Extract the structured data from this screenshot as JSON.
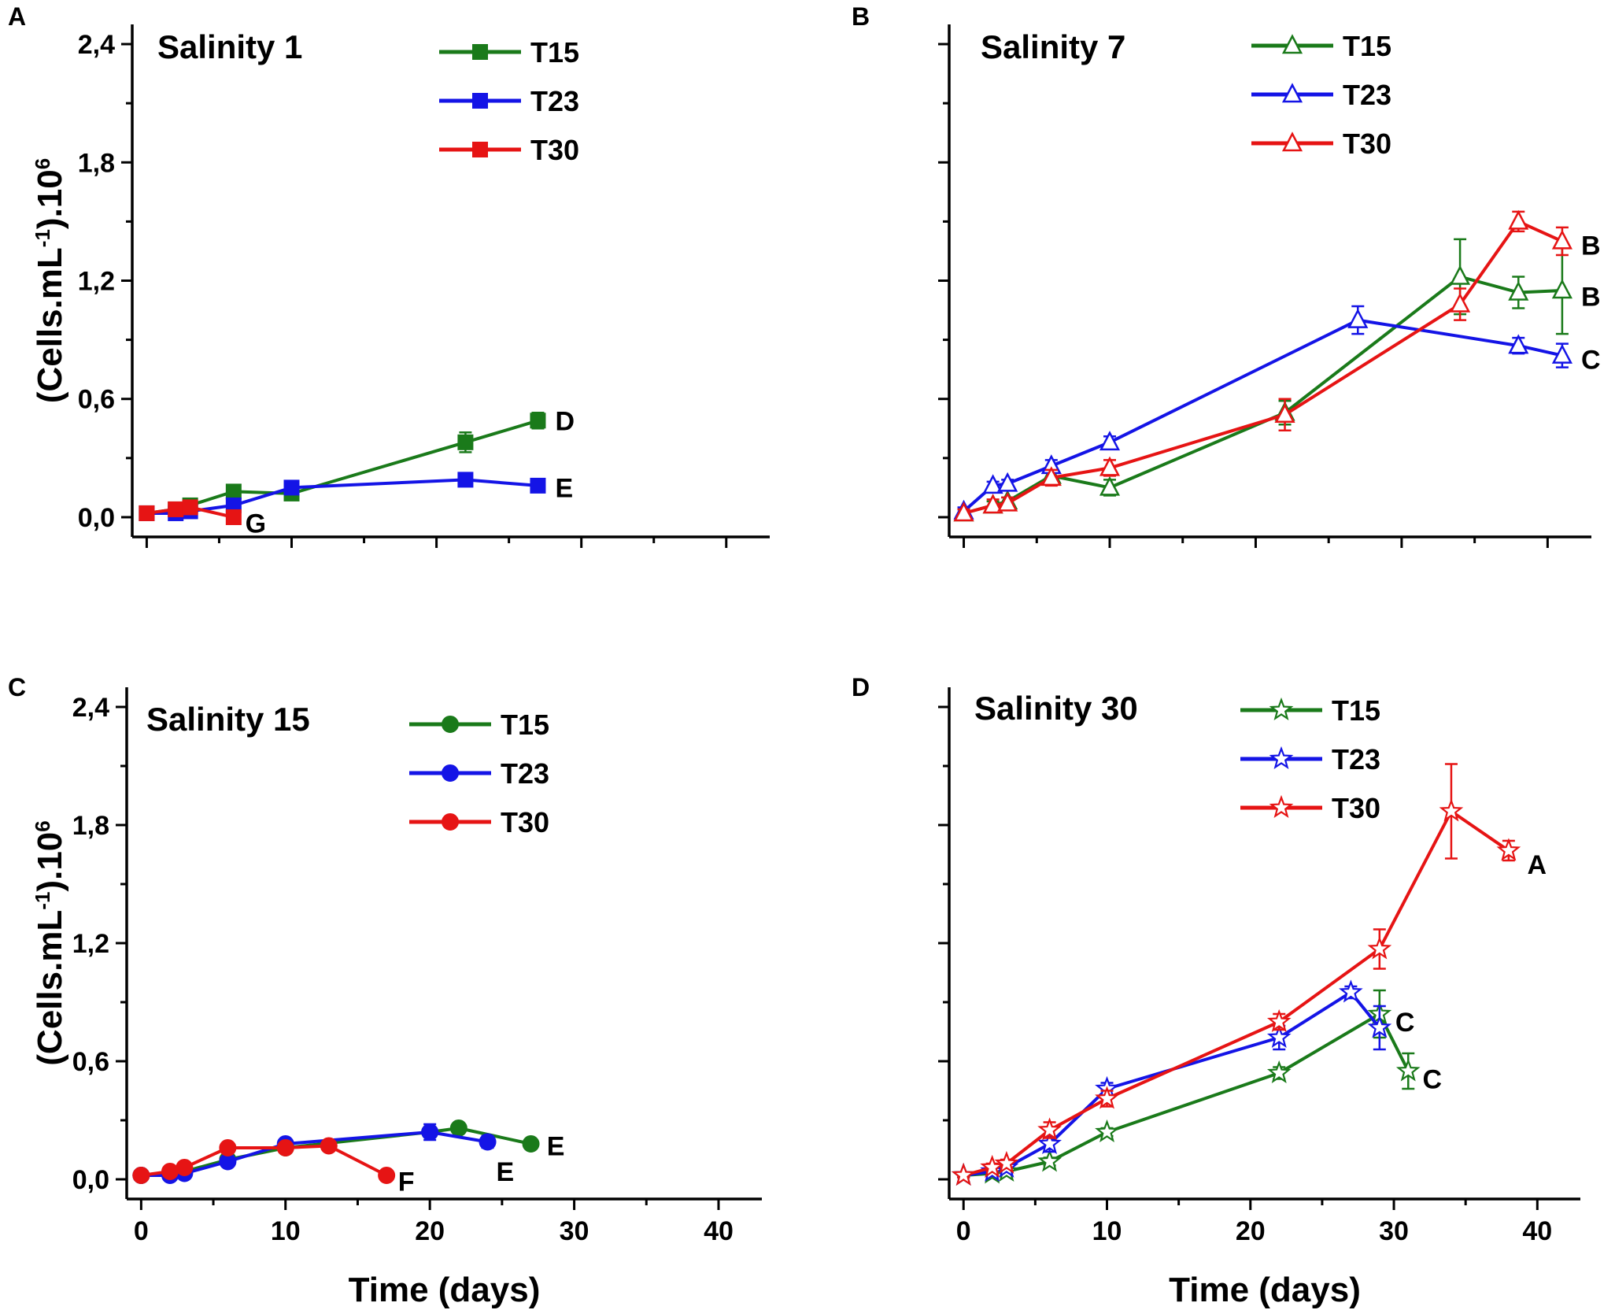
{
  "colors": {
    "T15": "#1a7a1a",
    "T23": "#1414e6",
    "T30": "#e61414",
    "axis": "#000000"
  },
  "chart_data": [
    {
      "type": "line",
      "panel_label": "A",
      "title": "Salinity 1",
      "marker": "square-filled",
      "xlabel": "",
      "ylabel": "(Cells.mL-1).10^6",
      "ylabel_parts": {
        "base": "(Cells.mL",
        "sup1": "-1",
        "mid": ").10",
        "sup2": "6"
      },
      "xlim": [
        -1,
        43
      ],
      "ylim": [
        -0.1,
        2.5
      ],
      "xticks": [
        "0",
        "10",
        "20",
        "30",
        "40"
      ],
      "xticks_labeled": false,
      "yticks": [
        "0,0",
        "0,6",
        "1,2",
        "1,8",
        "2,4"
      ],
      "yticks_labeled": true,
      "legend": [
        "T15",
        "T23",
        "T30"
      ],
      "series": [
        {
          "name": "T15",
          "x": [
            0,
            2,
            3,
            6,
            10,
            22,
            27
          ],
          "y": [
            0.02,
            0.04,
            0.06,
            0.13,
            0.12,
            0.38,
            0.49
          ],
          "err": [
            0.01,
            0.01,
            0.01,
            0.02,
            0.02,
            0.05,
            0.04
          ]
        },
        {
          "name": "T23",
          "x": [
            0,
            2,
            3,
            6,
            10,
            22,
            27
          ],
          "y": [
            0.02,
            0.02,
            0.03,
            0.06,
            0.15,
            0.19,
            0.16
          ],
          "err": [
            0.01,
            0.01,
            0.01,
            0.01,
            0.02,
            0.02,
            0.02
          ]
        },
        {
          "name": "T30",
          "x": [
            0,
            2,
            3,
            6
          ],
          "y": [
            0.02,
            0.04,
            0.05,
            0.0
          ],
          "err": [
            0.01,
            0.01,
            0.01,
            0.01
          ]
        }
      ],
      "annotations": [
        {
          "text": "D",
          "x": 28.2,
          "y": 0.49
        },
        {
          "text": "E",
          "x": 28.2,
          "y": 0.15
        },
        {
          "text": "G",
          "x": 6.8,
          "y": -0.03
        }
      ]
    },
    {
      "type": "line",
      "panel_label": "B",
      "title": "Salinity 7",
      "marker": "triangle-open",
      "xlabel": "",
      "ylabel": "",
      "xlim": [
        -1,
        43
      ],
      "ylim": [
        -0.1,
        2.5
      ],
      "xticks": [
        "0",
        "10",
        "20",
        "30",
        "40"
      ],
      "xticks_labeled": false,
      "yticks": [
        "0,0",
        "0,6",
        "1,2",
        "1,8",
        "2,4"
      ],
      "yticks_labeled": false,
      "legend": [
        "T15",
        "T23",
        "T30"
      ],
      "series": [
        {
          "name": "T15",
          "x": [
            0,
            2,
            3,
            6,
            10,
            22,
            34,
            38,
            41
          ],
          "y": [
            0.02,
            0.06,
            0.08,
            0.21,
            0.15,
            0.53,
            1.22,
            1.14,
            1.15
          ],
          "err": [
            0.02,
            0.02,
            0.02,
            0.03,
            0.04,
            0.06,
            0.19,
            0.08,
            0.22
          ]
        },
        {
          "name": "T23",
          "x": [
            0,
            2,
            3,
            6,
            10,
            27,
            38,
            41
          ],
          "y": [
            0.03,
            0.16,
            0.17,
            0.26,
            0.38,
            1.0,
            0.87,
            0.82
          ],
          "err": [
            0.02,
            0.02,
            0.02,
            0.03,
            0.03,
            0.07,
            0.04,
            0.06
          ]
        },
        {
          "name": "T30",
          "x": [
            0,
            2,
            3,
            6,
            10,
            22,
            34,
            38,
            41
          ],
          "y": [
            0.02,
            0.06,
            0.07,
            0.2,
            0.25,
            0.52,
            1.08,
            1.5,
            1.4
          ],
          "err": [
            0.02,
            0.03,
            0.03,
            0.04,
            0.04,
            0.08,
            0.08,
            0.05,
            0.07
          ]
        }
      ],
      "annotations": [
        {
          "text": "B",
          "x": 42.3,
          "y": 1.38
        },
        {
          "text": "B",
          "x": 42.3,
          "y": 1.12
        },
        {
          "text": "C",
          "x": 42.3,
          "y": 0.8
        }
      ]
    },
    {
      "type": "line",
      "panel_label": "C",
      "title": "Salinity 15",
      "marker": "circle-filled",
      "xlabel": "Time (days)",
      "ylabel": "(Cells.mL-1).10^6",
      "ylabel_parts": {
        "base": "(Cells.mL",
        "sup1": "-1",
        "mid": ").10",
        "sup2": "6"
      },
      "xlim": [
        -1,
        43
      ],
      "ylim": [
        -0.1,
        2.5
      ],
      "xticks": [
        "0",
        "10",
        "20",
        "30",
        "40"
      ],
      "xticks_labeled": true,
      "yticks": [
        "0,0",
        "0,6",
        "1,2",
        "1,8",
        "2,4"
      ],
      "yticks_labeled": true,
      "legend": [
        "T15",
        "T23",
        "T30"
      ],
      "series": [
        {
          "name": "T15",
          "x": [
            0,
            2,
            3,
            6,
            10,
            20,
            22,
            27
          ],
          "y": [
            0.02,
            0.03,
            0.04,
            0.1,
            0.16,
            0.24,
            0.26,
            0.18
          ],
          "err": [
            0.01,
            0.01,
            0.01,
            0.01,
            0.02,
            0.02,
            0.02,
            0.02
          ]
        },
        {
          "name": "T23",
          "x": [
            0,
            2,
            3,
            6,
            10,
            20,
            24
          ],
          "y": [
            0.02,
            0.02,
            0.03,
            0.09,
            0.18,
            0.24,
            0.19
          ],
          "err": [
            0.01,
            0.01,
            0.01,
            0.01,
            0.02,
            0.04,
            0.03
          ]
        },
        {
          "name": "T30",
          "x": [
            0,
            2,
            3,
            6,
            10,
            13,
            17
          ],
          "y": [
            0.02,
            0.04,
            0.06,
            0.16,
            0.16,
            0.17,
            0.02
          ],
          "err": [
            0.01,
            0.01,
            0.01,
            0.02,
            0.02,
            0.02,
            0.01
          ]
        }
      ],
      "annotations": [
        {
          "text": "E",
          "x": 28.1,
          "y": 0.17
        },
        {
          "text": "E",
          "x": 24.6,
          "y": 0.04
        },
        {
          "text": "F",
          "x": 17.8,
          "y": -0.01
        }
      ]
    },
    {
      "type": "line",
      "panel_label": "D",
      "title": "Salinity 30",
      "marker": "star-open",
      "xlabel": "Time (days)",
      "ylabel": "",
      "xlim": [
        -1,
        43
      ],
      "ylim": [
        -0.1,
        2.5
      ],
      "xticks": [
        "0",
        "10",
        "20",
        "30",
        "40"
      ],
      "xticks_labeled": true,
      "yticks": [
        "0,0",
        "0,6",
        "1,2",
        "1,8",
        "2,4"
      ],
      "yticks_labeled": false,
      "legend": [
        "T15",
        "T23",
        "T30"
      ],
      "series": [
        {
          "name": "T15",
          "x": [
            0,
            2,
            3,
            6,
            10,
            22,
            29,
            31
          ],
          "y": [
            0.02,
            0.03,
            0.04,
            0.09,
            0.24,
            0.54,
            0.84,
            0.55
          ],
          "err": [
            0.01,
            0.01,
            0.01,
            0.02,
            0.02,
            0.03,
            0.12,
            0.09
          ]
        },
        {
          "name": "T23",
          "x": [
            0,
            2,
            3,
            6,
            10,
            22,
            27,
            29
          ],
          "y": [
            0.02,
            0.04,
            0.06,
            0.18,
            0.46,
            0.72,
            0.95,
            0.77
          ],
          "err": [
            0.01,
            0.01,
            0.02,
            0.04,
            0.03,
            0.06,
            0.03,
            0.11
          ]
        },
        {
          "name": "T30",
          "x": [
            0,
            2,
            3,
            6,
            10,
            22,
            29,
            34,
            38
          ],
          "y": [
            0.02,
            0.06,
            0.08,
            0.25,
            0.41,
            0.8,
            1.17,
            1.87,
            1.67
          ],
          "err": [
            0.01,
            0.02,
            0.02,
            0.04,
            0.04,
            0.04,
            0.1,
            0.24,
            0.05
          ]
        }
      ],
      "annotations": [
        {
          "text": "A",
          "x": 39.3,
          "y": 1.6
        },
        {
          "text": "C",
          "x": 30.1,
          "y": 0.8
        },
        {
          "text": "C",
          "x": 32.0,
          "y": 0.51
        }
      ]
    }
  ]
}
